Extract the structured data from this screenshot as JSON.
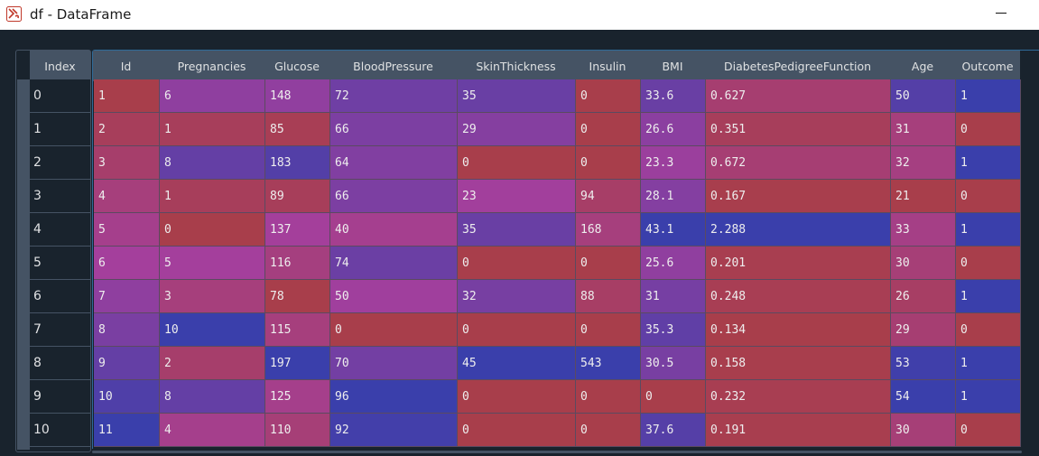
{
  "window": {
    "title": "df - DataFrame",
    "app_icon": "spyder-icon",
    "minimize_glyph": "—"
  },
  "index_header": "Index",
  "columns": [
    "Id",
    "Pregnancies",
    "Glucose",
    "BloodPressure",
    "SkinThickness",
    "Insulin",
    "BMI",
    "DiabetesPedigreeFunction",
    "Age",
    "Outcome"
  ],
  "index": [
    "0",
    "1",
    "2",
    "3",
    "4",
    "5",
    "6",
    "7",
    "8",
    "9",
    "10"
  ],
  "rows": [
    [
      "1",
      "6",
      "148",
      "72",
      "35",
      "0",
      "33.6",
      "0.627",
      "50",
      "1"
    ],
    [
      "2",
      "1",
      "85",
      "66",
      "29",
      "0",
      "26.6",
      "0.351",
      "31",
      "0"
    ],
    [
      "3",
      "8",
      "183",
      "64",
      "0",
      "0",
      "23.3",
      "0.672",
      "32",
      "1"
    ],
    [
      "4",
      "1",
      "89",
      "66",
      "23",
      "94",
      "28.1",
      "0.167",
      "21",
      "0"
    ],
    [
      "5",
      "0",
      "137",
      "40",
      "35",
      "168",
      "43.1",
      "2.288",
      "33",
      "1"
    ],
    [
      "6",
      "5",
      "116",
      "74",
      "0",
      "0",
      "25.6",
      "0.201",
      "30",
      "0"
    ],
    [
      "7",
      "3",
      "78",
      "50",
      "32",
      "88",
      "31",
      "0.248",
      "26",
      "1"
    ],
    [
      "8",
      "10",
      "115",
      "0",
      "0",
      "0",
      "35.3",
      "0.134",
      "29",
      "0"
    ],
    [
      "9",
      "2",
      "197",
      "70",
      "45",
      "543",
      "30.5",
      "0.158",
      "53",
      "1"
    ],
    [
      "10",
      "8",
      "125",
      "96",
      "0",
      "0",
      "0",
      "0.232",
      "54",
      "1"
    ],
    [
      "11",
      "4",
      "110",
      "92",
      "0",
      "0",
      "37.6",
      "0.191",
      "30",
      "0"
    ]
  ],
  "colors": {
    "background": "#19232d",
    "header": "#455364",
    "heat_low": "#a83e4b",
    "heat_mid": "#a43f9c",
    "heat_high": "#3a3fab",
    "selection_border": "#2f6b99"
  }
}
